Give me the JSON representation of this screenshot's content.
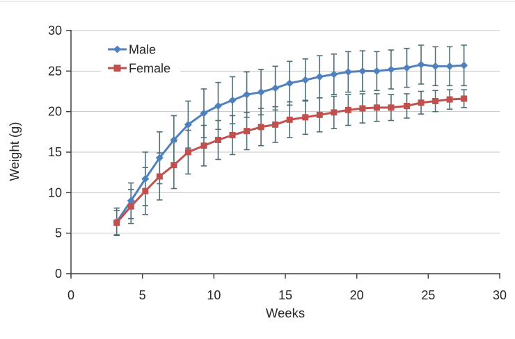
{
  "chart_data": {
    "type": "line",
    "title": "",
    "xlabel": "Weeks",
    "ylabel": "Weight (g)",
    "xlim": [
      0,
      30
    ],
    "ylim": [
      0,
      30
    ],
    "x_ticks": [
      0,
      5,
      10,
      15,
      20,
      25,
      30
    ],
    "y_ticks": [
      0,
      5,
      10,
      15,
      20,
      25,
      30
    ],
    "grid": "horizontal-only",
    "legend_position": "top-left-inside",
    "x_weeks": [
      3.2,
      4.2,
      5.2,
      6.2,
      7.2,
      8.2,
      9.3,
      10.3,
      11.3,
      12.3,
      13.3,
      14.3,
      15.3,
      16.4,
      17.4,
      18.4,
      19.4,
      20.4,
      21.4,
      22.4,
      23.5,
      24.5,
      25.5,
      26.5,
      27.5
    ],
    "series": [
      {
        "name": "Male",
        "color": "#4F81BD",
        "marker": "diamond",
        "values": [
          6.4,
          9.0,
          11.7,
          14.3,
          16.5,
          18.4,
          19.8,
          20.7,
          21.4,
          22.1,
          22.4,
          22.9,
          23.5,
          23.9,
          24.3,
          24.6,
          24.9,
          25.0,
          25.0,
          25.2,
          25.4,
          25.8,
          25.6,
          25.6,
          25.7
        ],
        "errors": [
          1.7,
          2.2,
          3.3,
          3.2,
          3.0,
          2.9,
          3.0,
          2.9,
          2.9,
          2.8,
          2.8,
          2.7,
          2.7,
          2.6,
          2.6,
          2.5,
          2.5,
          2.5,
          2.4,
          2.4,
          2.4,
          2.4,
          2.4,
          2.4,
          2.5
        ]
      },
      {
        "name": "Female",
        "color": "#C0504D",
        "marker": "square",
        "values": [
          6.3,
          8.3,
          10.2,
          12.0,
          13.4,
          15.0,
          15.8,
          16.5,
          17.1,
          17.6,
          18.1,
          18.4,
          19.0,
          19.3,
          19.6,
          19.9,
          20.2,
          20.4,
          20.5,
          20.5,
          20.7,
          21.1,
          21.3,
          21.5,
          21.6
        ],
        "errors": [
          1.5,
          2.1,
          2.9,
          2.9,
          2.9,
          2.7,
          2.5,
          2.4,
          2.4,
          2.3,
          2.3,
          2.2,
          2.2,
          2.1,
          2.1,
          2.0,
          1.9,
          1.8,
          1.7,
          1.6,
          1.5,
          1.4,
          1.3,
          1.2,
          1.1
        ]
      }
    ],
    "error_bar_color": "#4E6E78",
    "gridline_color": "#C6C6C6",
    "axis_color": "#3D3D3D",
    "text_color": "#262626",
    "top_border_color": "#E6E6E6"
  }
}
